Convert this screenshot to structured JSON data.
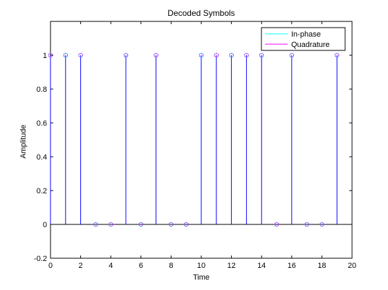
{
  "chart_data": {
    "type": "stem",
    "title": "Decoded Symbols",
    "xlabel": "Time",
    "ylabel": "Amplitude",
    "xlim": [
      0,
      20
    ],
    "ylim": [
      -0.2,
      1.2
    ],
    "xticks": [
      "0",
      "2",
      "4",
      "6",
      "8",
      "10",
      "12",
      "14",
      "16",
      "18",
      "20"
    ],
    "yticks": [
      "-0.2",
      "0",
      "0.2",
      "0.4",
      "0.6",
      "0.8",
      "1"
    ],
    "grid": false,
    "legend_position": "top-right",
    "series": [
      {
        "name": "In-phase",
        "color": "#00ffff",
        "x": [
          0,
          1,
          2,
          3,
          4,
          5,
          6,
          7,
          8,
          9,
          10,
          11,
          12,
          13,
          14,
          15,
          16,
          17,
          18,
          19
        ],
        "values": [
          1,
          1,
          1,
          0,
          0,
          1,
          0,
          1,
          0,
          0,
          1,
          1,
          1,
          1,
          1,
          0,
          1,
          0,
          0,
          1
        ]
      },
      {
        "name": "Quadrature",
        "color": "#ff00ff",
        "x": [
          0,
          1,
          2,
          3,
          4,
          5,
          6,
          7,
          8,
          9,
          10,
          11,
          12,
          13,
          14,
          15,
          16,
          17,
          18,
          19
        ],
        "values": [
          1,
          1,
          1,
          0,
          0,
          1,
          0,
          1,
          0,
          0,
          1,
          1,
          1,
          1,
          1,
          0,
          1,
          0,
          0,
          1
        ]
      }
    ],
    "stem_color": "#0000ff"
  }
}
